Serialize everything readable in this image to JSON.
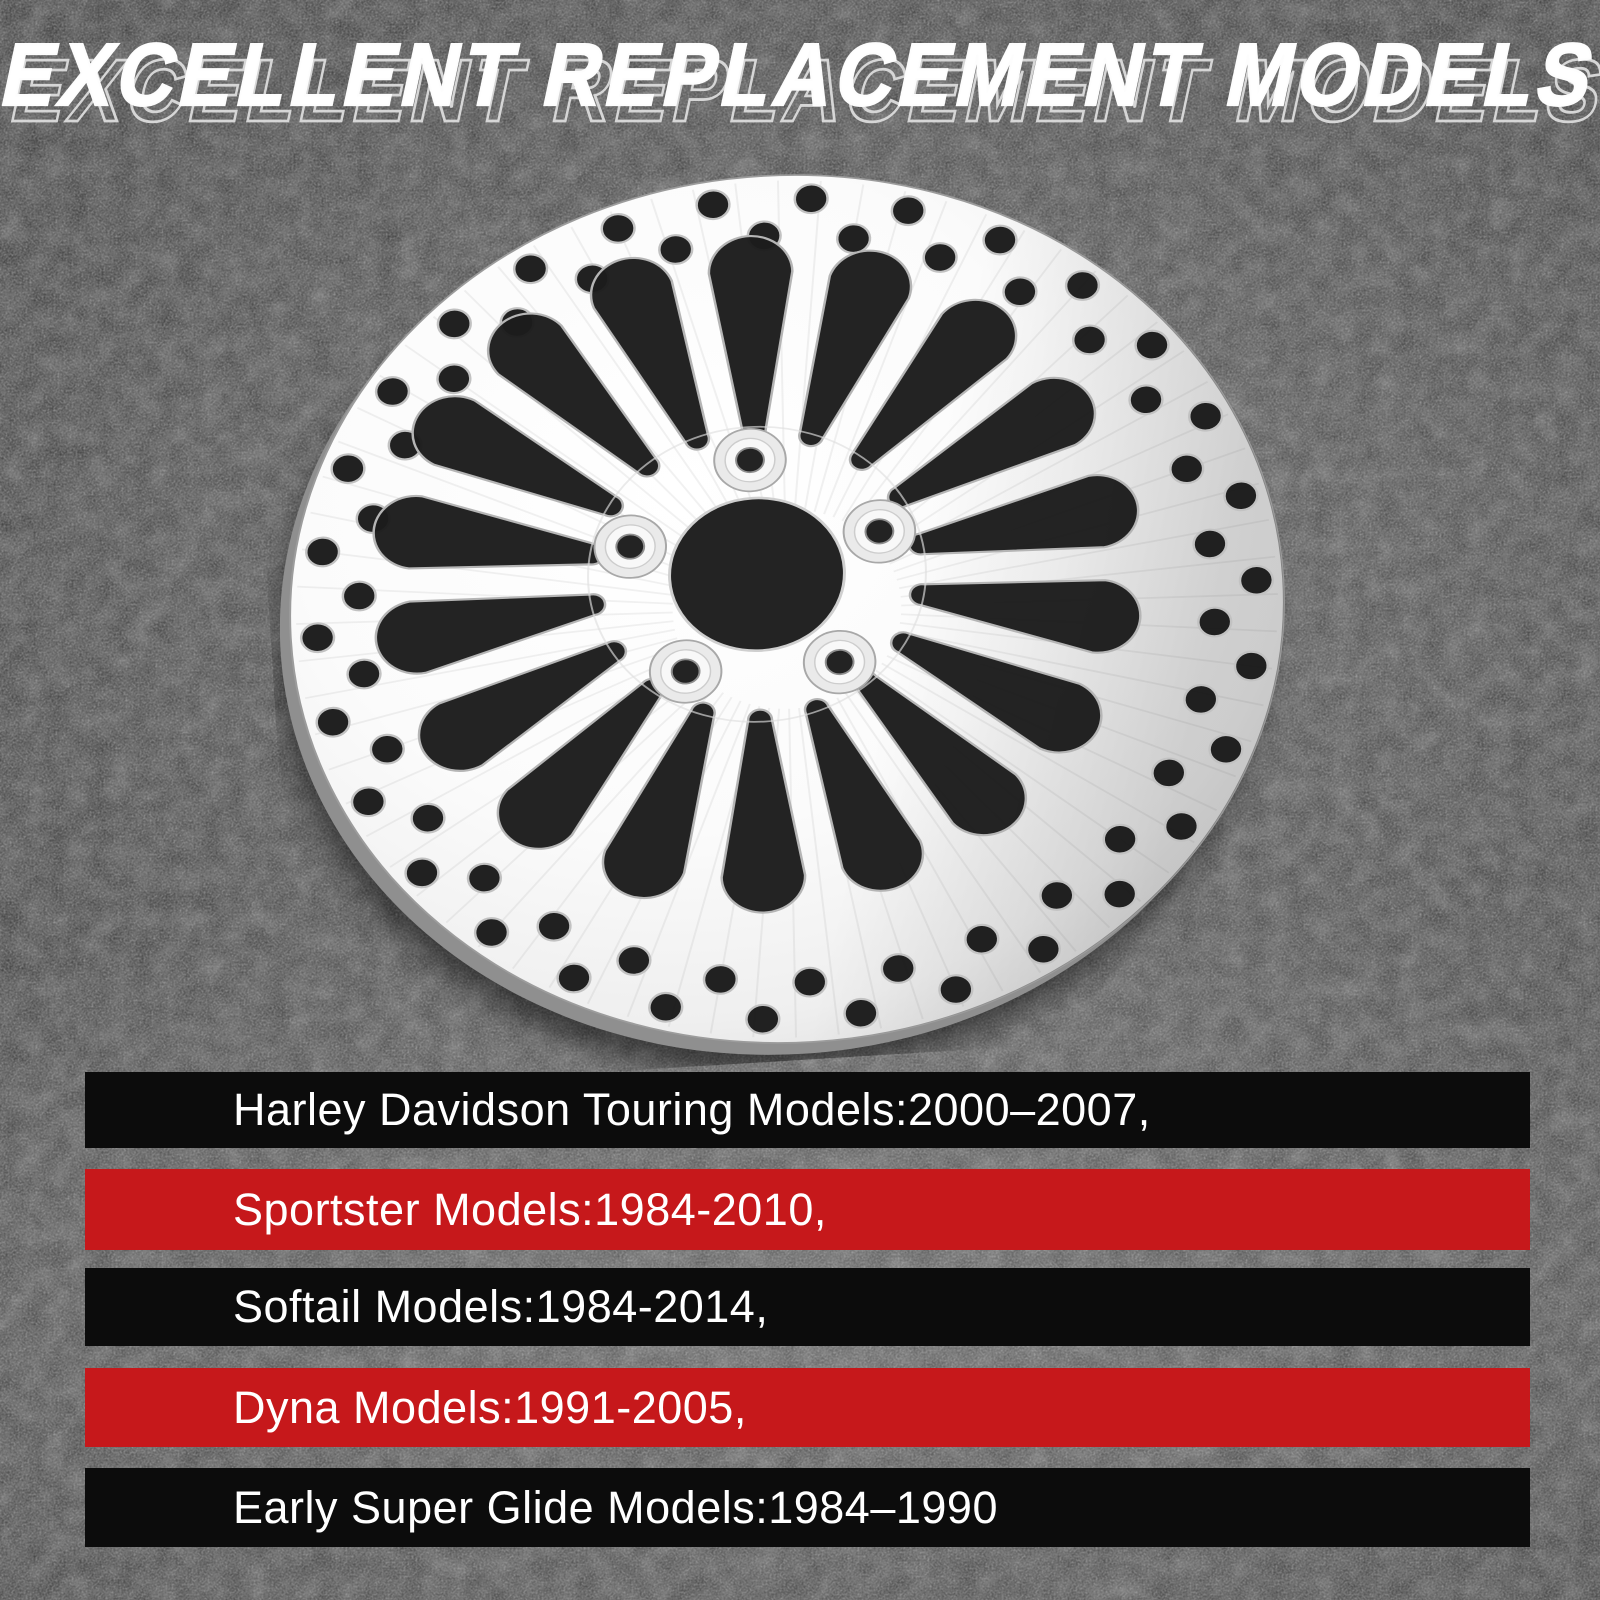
{
  "title": "EXCELLENT REPLACEMENT MODELS",
  "rotor": {
    "description": "polished stainless super-spoke brake rotor with drilled holes, 18 teardrop cutouts and 5-bolt hub"
  },
  "compatibility_rows": [
    {
      "label": "Harley Davidson Touring Models:2000–2007,",
      "bar_color": "black"
    },
    {
      "label": "Sportster Models:1984-2010,",
      "bar_color": "red"
    },
    {
      "label": "Softail Models:1984-2014,",
      "bar_color": "black"
    },
    {
      "label": "Dyna Models:1991-2005,",
      "bar_color": "red"
    },
    {
      "label": "Early Super Glide Models:1984–1990",
      "bar_color": "black"
    }
  ],
  "colors": {
    "red_bar": "#c6181b",
    "black_bar": "#0c0c0c",
    "background": "#2c2c2c",
    "text": "#ffffff",
    "rotor_metal": "#f2f2f2"
  }
}
